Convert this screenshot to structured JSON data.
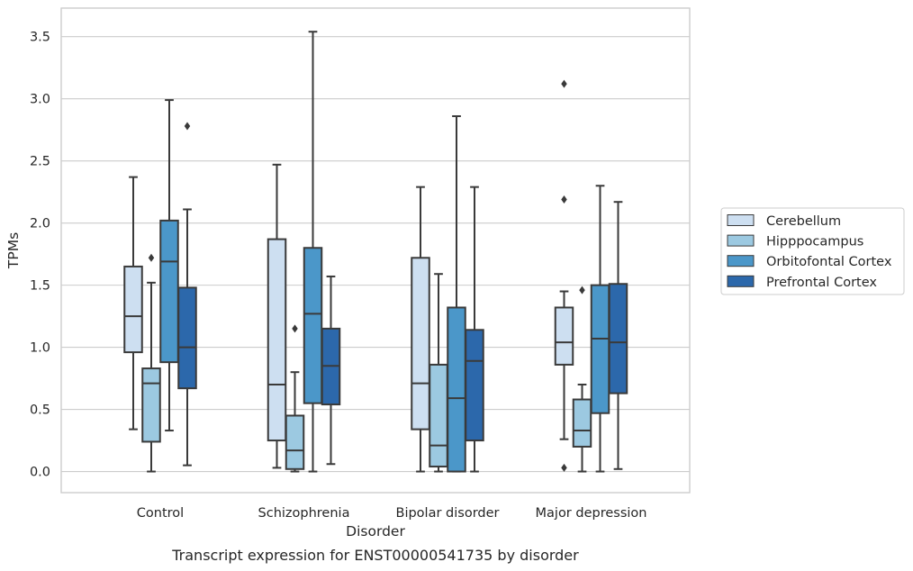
{
  "caption": "Transcript expression for ENST00000541735 by disorder",
  "colors": {
    "Cerebellum": "#cddff1",
    "Hipppocampus": "#9cc9e1",
    "Orbitofontal Cortex": "#4b97c9",
    "Prefrontal Cortex": "#2c68ab",
    "edge": "#3a3a3a",
    "grid": "#cccccc",
    "frame": "#cccccc"
  },
  "chart_data": {
    "type": "box",
    "xlabel": "Disorder",
    "ylabel": "TPMs",
    "ylim": [
      -0.17,
      3.73
    ],
    "yticks": [
      0.0,
      0.5,
      1.0,
      1.5,
      2.0,
      2.5,
      3.0,
      3.5
    ],
    "ytick_labels": [
      "0.0",
      "0.5",
      "1.0",
      "1.5",
      "2.0",
      "2.5",
      "3.0",
      "3.5"
    ],
    "grid": "horizontal",
    "legend_position": "right",
    "categories": [
      "Control",
      "Schizophrenia",
      "Bipolar disorder",
      "Major depression"
    ],
    "series": [
      {
        "name": "Cerebellum",
        "boxes": [
          {
            "whislo": 0.34,
            "q1": 0.96,
            "med": 1.25,
            "q3": 1.65,
            "whishi": 2.37,
            "fliers": []
          },
          {
            "whislo": 0.03,
            "q1": 0.25,
            "med": 0.7,
            "q3": 1.87,
            "whishi": 2.47,
            "fliers": []
          },
          {
            "whislo": 0.0,
            "q1": 0.34,
            "med": 0.71,
            "q3": 1.72,
            "whishi": 2.29,
            "fliers": []
          },
          {
            "whislo": 0.26,
            "q1": 0.86,
            "med": 1.04,
            "q3": 1.32,
            "whishi": 1.45,
            "fliers": [
              0.03,
              2.19,
              3.12
            ]
          }
        ]
      },
      {
        "name": "Hipppocampus",
        "boxes": [
          {
            "whislo": 0.0,
            "q1": 0.24,
            "med": 0.71,
            "q3": 0.83,
            "whishi": 1.52,
            "fliers": [
              1.72
            ]
          },
          {
            "whislo": 0.0,
            "q1": 0.02,
            "med": 0.17,
            "q3": 0.45,
            "whishi": 0.8,
            "fliers": [
              1.15
            ]
          },
          {
            "whislo": 0.0,
            "q1": 0.04,
            "med": 0.21,
            "q3": 0.86,
            "whishi": 1.59,
            "fliers": []
          },
          {
            "whislo": 0.0,
            "q1": 0.2,
            "med": 0.33,
            "q3": 0.58,
            "whishi": 0.7,
            "fliers": [
              1.46
            ]
          }
        ]
      },
      {
        "name": "Orbitofontal Cortex",
        "boxes": [
          {
            "whislo": 0.33,
            "q1": 0.88,
            "med": 1.69,
            "q3": 2.02,
            "whishi": 2.99,
            "fliers": []
          },
          {
            "whislo": 0.0,
            "q1": 0.55,
            "med": 1.27,
            "q3": 1.8,
            "whishi": 3.54,
            "fliers": []
          },
          {
            "whislo": 0.0,
            "q1": 0.0,
            "med": 0.59,
            "q3": 1.32,
            "whishi": 2.86,
            "fliers": []
          },
          {
            "whislo": 0.0,
            "q1": 0.47,
            "med": 1.07,
            "q3": 1.5,
            "whishi": 2.3,
            "fliers": []
          }
        ]
      },
      {
        "name": "Prefrontal Cortex",
        "boxes": [
          {
            "whislo": 0.05,
            "q1": 0.67,
            "med": 1.0,
            "q3": 1.48,
            "whishi": 2.11,
            "fliers": [
              2.78
            ]
          },
          {
            "whislo": 0.06,
            "q1": 0.54,
            "med": 0.85,
            "q3": 1.15,
            "whishi": 1.57,
            "fliers": []
          },
          {
            "whislo": 0.0,
            "q1": 0.25,
            "med": 0.89,
            "q3": 1.14,
            "whishi": 2.29,
            "fliers": []
          },
          {
            "whislo": 0.02,
            "q1": 0.63,
            "med": 1.04,
            "q3": 1.51,
            "whishi": 2.17,
            "fliers": []
          }
        ]
      }
    ]
  }
}
